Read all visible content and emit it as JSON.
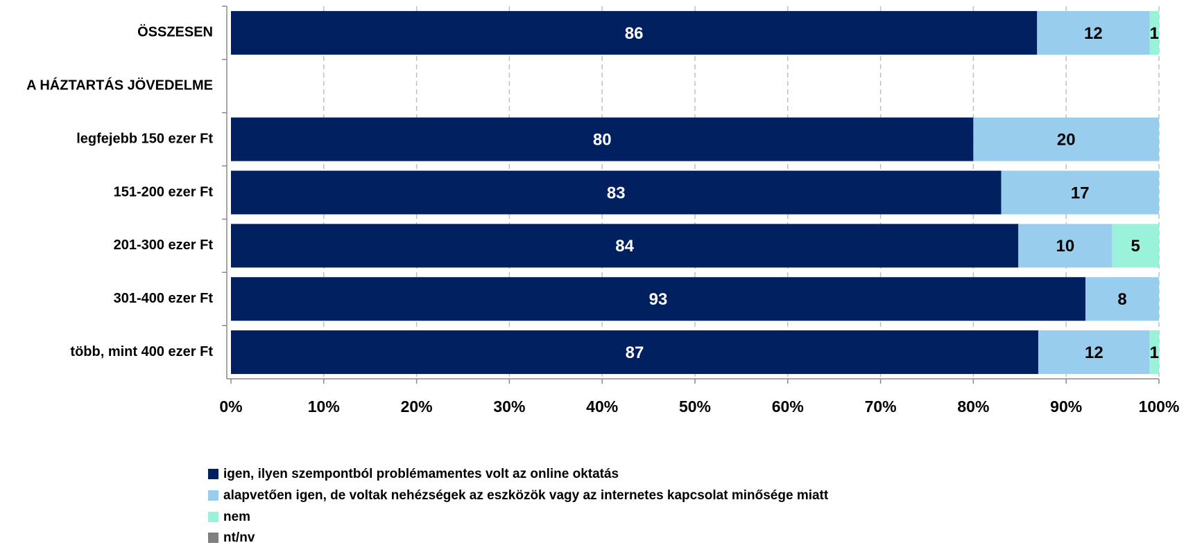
{
  "chart_data": {
    "type": "bar",
    "orientation": "horizontal",
    "stacking": "percent",
    "categories": [
      "ÖSSZESEN",
      "A HÁZTARTÁS JÖVEDELME",
      "legfejebb 150 ezer Ft",
      "151-200 ezer Ft",
      "201-300 ezer Ft",
      "301-400 ezer Ft",
      "több, mint 400 ezer Ft"
    ],
    "series": [
      {
        "name": "igen, ilyen szempontból problémamentes volt az online oktatás",
        "color": "#002060",
        "values": [
          86,
          null,
          80,
          83,
          84,
          93,
          87
        ]
      },
      {
        "name": "alapvetően igen, de voltak nehézségek az eszközök vagy az internetes kapcsolat minősége miatt",
        "color": "#99cdee",
        "values": [
          12,
          null,
          20,
          17,
          10,
          8,
          12
        ]
      },
      {
        "name": "nem",
        "color": "#99f2d9",
        "values": [
          1,
          null,
          null,
          null,
          5,
          null,
          1
        ]
      },
      {
        "name": "nt/nv",
        "color": "#808080",
        "values": [
          null,
          null,
          null,
          null,
          null,
          null,
          null
        ]
      }
    ],
    "xlim": [
      0,
      100
    ],
    "xticks": [
      {
        "value": 0,
        "label": "0%"
      },
      {
        "value": 10,
        "label": "10%"
      },
      {
        "value": 20,
        "label": "20%"
      },
      {
        "value": 30,
        "label": "30%"
      },
      {
        "value": 40,
        "label": "40%"
      },
      {
        "value": 50,
        "label": "50%"
      },
      {
        "value": 60,
        "label": "60%"
      },
      {
        "value": 70,
        "label": "70%"
      },
      {
        "value": 80,
        "label": "80%"
      },
      {
        "value": 90,
        "label": "90%"
      },
      {
        "value": 100,
        "label": "100%"
      }
    ],
    "grid": true,
    "legend": "bottom"
  }
}
